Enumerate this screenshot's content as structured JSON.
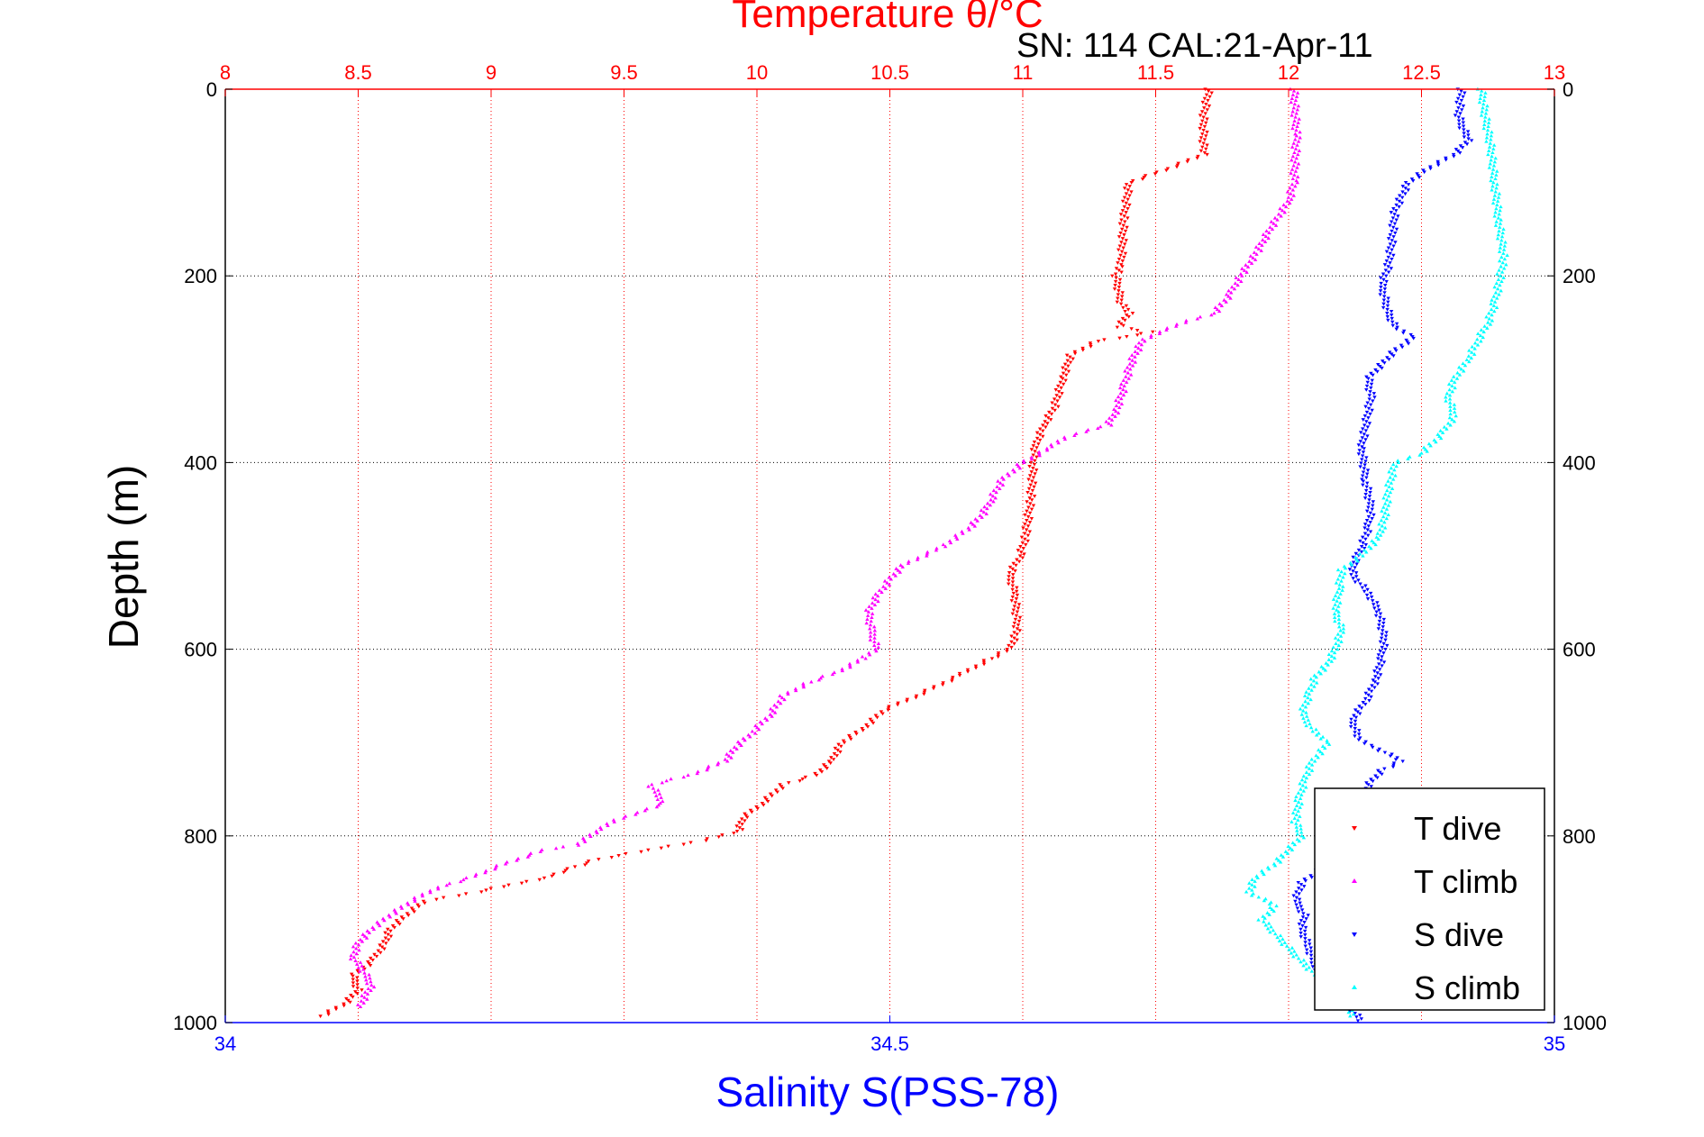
{
  "chart_data": {
    "type": "scatter",
    "title": "Temperature θ/°C",
    "annotation": "SN: 114  CAL:21-Apr-11",
    "xlabel_top": "Temperature θ/°C",
    "xlabel_bottom": "Salinity S(PSS-78)",
    "ylabel": "Depth (m)",
    "ylim": [
      1000,
      0
    ],
    "y_reversed": true,
    "xlim_top": [
      8,
      13
    ],
    "xlim_bottom": [
      34,
      35
    ],
    "top_ticks": [
      "8",
      "8.5",
      "9",
      "9.5",
      "10",
      "10.5",
      "11",
      "11.5",
      "12",
      "12.5",
      "13"
    ],
    "bottom_ticks": [
      "34",
      "34.5",
      "35"
    ],
    "depth_ticks": [
      "0",
      "200",
      "400",
      "600",
      "800",
      "1000"
    ],
    "grid": true,
    "legend_position": "bottom-right",
    "colors": {
      "temperature_axis": "#ff0000",
      "salinity_axis": "#0000ff",
      "grid_top": "#ff0000",
      "grid_depth": "#000000"
    },
    "series": [
      {
        "name": "T dive",
        "axis": "top",
        "marker": "down-triangle",
        "color": "#ff0000",
        "points": [
          [
            11.7,
            0
          ],
          [
            11.68,
            30
          ],
          [
            11.68,
            70
          ],
          [
            11.55,
            85
          ],
          [
            11.4,
            100
          ],
          [
            11.38,
            140
          ],
          [
            11.37,
            190
          ],
          [
            11.35,
            200
          ],
          [
            11.37,
            230
          ],
          [
            11.4,
            240
          ],
          [
            11.36,
            255
          ],
          [
            11.48,
            260
          ],
          [
            11.4,
            265
          ],
          [
            11.28,
            270
          ],
          [
            11.18,
            285
          ],
          [
            11.15,
            310
          ],
          [
            11.12,
            340
          ],
          [
            11.08,
            360
          ],
          [
            11.05,
            380
          ],
          [
            11.04,
            400
          ],
          [
            11.03,
            440
          ],
          [
            11.01,
            480
          ],
          [
            10.99,
            500
          ],
          [
            10.95,
            520
          ],
          [
            10.97,
            540
          ],
          [
            10.98,
            580
          ],
          [
            10.95,
            600
          ],
          [
            10.88,
            610
          ],
          [
            10.75,
            630
          ],
          [
            10.6,
            650
          ],
          [
            10.48,
            665
          ],
          [
            10.4,
            685
          ],
          [
            10.32,
            700
          ],
          [
            10.28,
            720
          ],
          [
            10.22,
            735
          ],
          [
            10.1,
            745
          ],
          [
            10.02,
            765
          ],
          [
            9.95,
            780
          ],
          [
            9.93,
            795
          ],
          [
            9.8,
            805
          ],
          [
            9.6,
            815
          ],
          [
            9.4,
            825
          ],
          [
            9.3,
            835
          ],
          [
            9.2,
            845
          ],
          [
            8.95,
            860
          ],
          [
            8.75,
            870
          ],
          [
            8.68,
            885
          ],
          [
            8.62,
            900
          ],
          [
            8.6,
            915
          ],
          [
            8.55,
            935
          ],
          [
            8.48,
            950
          ],
          [
            8.5,
            965
          ],
          [
            8.45,
            980
          ],
          [
            8.35,
            995
          ]
        ]
      },
      {
        "name": "T climb",
        "axis": "top",
        "marker": "up-triangle",
        "color": "#ff00ff",
        "points": [
          [
            12.02,
            0
          ],
          [
            12.03,
            50
          ],
          [
            12.02,
            100
          ],
          [
            12.0,
            120
          ],
          [
            11.93,
            150
          ],
          [
            11.88,
            175
          ],
          [
            11.82,
            200
          ],
          [
            11.78,
            220
          ],
          [
            11.72,
            240
          ],
          [
            11.6,
            250
          ],
          [
            11.52,
            260
          ],
          [
            11.45,
            270
          ],
          [
            11.42,
            285
          ],
          [
            11.4,
            300
          ],
          [
            11.38,
            320
          ],
          [
            11.35,
            345
          ],
          [
            11.32,
            360
          ],
          [
            11.25,
            365
          ],
          [
            11.15,
            375
          ],
          [
            11.1,
            385
          ],
          [
            11.0,
            400
          ],
          [
            10.92,
            420
          ],
          [
            10.88,
            440
          ],
          [
            10.85,
            455
          ],
          [
            10.8,
            470
          ],
          [
            10.7,
            490
          ],
          [
            10.55,
            510
          ],
          [
            10.5,
            525
          ],
          [
            10.45,
            545
          ],
          [
            10.42,
            560
          ],
          [
            10.43,
            580
          ],
          [
            10.45,
            600
          ],
          [
            10.4,
            610
          ],
          [
            10.3,
            625
          ],
          [
            10.2,
            635
          ],
          [
            10.1,
            650
          ],
          [
            10.05,
            670
          ],
          [
            9.98,
            690
          ],
          [
            9.92,
            705
          ],
          [
            9.88,
            720
          ],
          [
            9.75,
            735
          ],
          [
            9.6,
            745
          ],
          [
            9.65,
            765
          ],
          [
            9.55,
            775
          ],
          [
            9.45,
            785
          ],
          [
            9.4,
            795
          ],
          [
            9.32,
            810
          ],
          [
            9.2,
            815
          ],
          [
            9.05,
            830
          ],
          [
            8.92,
            845
          ],
          [
            8.8,
            855
          ],
          [
            8.7,
            870
          ],
          [
            8.62,
            885
          ],
          [
            8.55,
            900
          ],
          [
            8.5,
            915
          ],
          [
            8.48,
            930
          ],
          [
            8.52,
            945
          ],
          [
            8.55,
            960
          ],
          [
            8.52,
            975
          ],
          [
            8.5,
            985
          ]
        ]
      },
      {
        "name": "S dive",
        "axis": "bottom",
        "marker": "down-triangle",
        "color": "#0000ff",
        "points": [
          [
            34.93,
            0
          ],
          [
            34.928,
            30
          ],
          [
            34.935,
            55
          ],
          [
            34.925,
            70
          ],
          [
            34.905,
            85
          ],
          [
            34.89,
            100
          ],
          [
            34.88,
            130
          ],
          [
            34.878,
            160
          ],
          [
            34.875,
            190
          ],
          [
            34.87,
            210
          ],
          [
            34.875,
            240
          ],
          [
            34.88,
            255
          ],
          [
            34.895,
            265
          ],
          [
            34.88,
            280
          ],
          [
            34.87,
            295
          ],
          [
            34.86,
            310
          ],
          [
            34.862,
            330
          ],
          [
            34.858,
            360
          ],
          [
            34.855,
            385
          ],
          [
            34.858,
            420
          ],
          [
            34.862,
            450
          ],
          [
            34.86,
            470
          ],
          [
            34.855,
            490
          ],
          [
            34.85,
            505
          ],
          [
            34.848,
            520
          ],
          [
            34.86,
            540
          ],
          [
            34.868,
            560
          ],
          [
            34.872,
            590
          ],
          [
            34.87,
            610
          ],
          [
            34.865,
            635
          ],
          [
            34.858,
            655
          ],
          [
            34.848,
            675
          ],
          [
            34.852,
            695
          ],
          [
            34.865,
            705
          ],
          [
            34.885,
            720
          ],
          [
            34.87,
            730
          ],
          [
            34.86,
            745
          ],
          [
            34.855,
            765
          ],
          [
            34.852,
            785
          ],
          [
            34.85,
            800
          ],
          [
            34.842,
            820
          ],
          [
            34.825,
            835
          ],
          [
            34.81,
            850
          ],
          [
            34.805,
            870
          ],
          [
            34.812,
            885
          ],
          [
            34.81,
            900
          ],
          [
            34.815,
            920
          ],
          [
            34.82,
            940
          ],
          [
            34.83,
            955
          ],
          [
            34.84,
            975
          ],
          [
            34.85,
            990
          ],
          [
            34.855,
            1000
          ]
        ]
      },
      {
        "name": "S climb",
        "axis": "bottom",
        "marker": "up-triangle",
        "color": "#00ffff",
        "points": [
          [
            34.945,
            0
          ],
          [
            34.948,
            30
          ],
          [
            34.952,
            60
          ],
          [
            34.955,
            100
          ],
          [
            34.958,
            140
          ],
          [
            34.962,
            180
          ],
          [
            34.958,
            210
          ],
          [
            34.955,
            230
          ],
          [
            34.95,
            250
          ],
          [
            34.942,
            270
          ],
          [
            34.935,
            290
          ],
          [
            34.925,
            310
          ],
          [
            34.92,
            330
          ],
          [
            34.925,
            350
          ],
          [
            34.915,
            370
          ],
          [
            34.9,
            390
          ],
          [
            34.88,
            400
          ],
          [
            34.875,
            430
          ],
          [
            34.872,
            460
          ],
          [
            34.868,
            480
          ],
          [
            34.855,
            500
          ],
          [
            34.84,
            515
          ],
          [
            34.838,
            535
          ],
          [
            34.835,
            560
          ],
          [
            34.84,
            580
          ],
          [
            34.835,
            600
          ],
          [
            34.83,
            615
          ],
          [
            34.82,
            630
          ],
          [
            34.815,
            650
          ],
          [
            34.81,
            670
          ],
          [
            34.82,
            690
          ],
          [
            34.83,
            700
          ],
          [
            34.818,
            720
          ],
          [
            34.812,
            740
          ],
          [
            34.808,
            760
          ],
          [
            34.805,
            785
          ],
          [
            34.81,
            800
          ],
          [
            34.8,
            815
          ],
          [
            34.79,
            830
          ],
          [
            34.775,
            845
          ],
          [
            34.77,
            860
          ],
          [
            34.79,
            875
          ],
          [
            34.78,
            890
          ],
          [
            34.79,
            905
          ],
          [
            34.8,
            920
          ],
          [
            34.81,
            935
          ],
          [
            34.825,
            955
          ],
          [
            34.84,
            975
          ],
          [
            34.85,
            995
          ]
        ]
      }
    ]
  },
  "legend": {
    "entries": [
      {
        "label": "T dive",
        "color": "#ff0000",
        "marker": "down-triangle"
      },
      {
        "label": "T climb",
        "color": "#ff00ff",
        "marker": "up-triangle"
      },
      {
        "label": "S dive",
        "color": "#0000ff",
        "marker": "down-triangle"
      },
      {
        "label": "S climb",
        "color": "#00ffff",
        "marker": "up-triangle"
      }
    ]
  }
}
